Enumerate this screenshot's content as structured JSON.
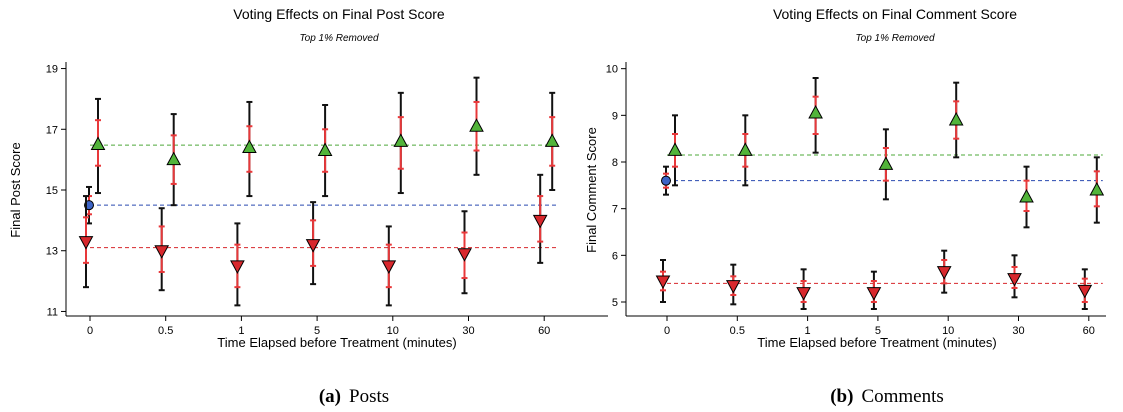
{
  "colors": {
    "control": "#3d64c6",
    "up": "#52b43a",
    "down": "#d8282d",
    "ci_inner": "#e8383a",
    "ci_outer": "#111111",
    "line_blue": "#2a4ab0",
    "line_green": "#4ea83a",
    "line_red": "#d8282d"
  },
  "captions": [
    {
      "tag": "(a)",
      "text": "Posts"
    },
    {
      "tag": "(b)",
      "text": "Comments"
    }
  ],
  "chart_data": [
    {
      "type": "scatter",
      "title": "Voting Effects on Final Post Score",
      "subtitle": "Top 1% Removed",
      "xlabel": "Time Elapsed before Treatment (minutes)",
      "ylabel": "Final Post Score",
      "categories": [
        "0",
        "0.5",
        "1",
        "5",
        "10",
        "30",
        "60"
      ],
      "yticks": [
        11,
        13,
        15,
        17,
        19
      ],
      "ylim": [
        10.85,
        19.15
      ],
      "control": {
        "value": 14.5,
        "ci_inner": [
          14.2,
          14.8
        ],
        "ci_outer": [
          13.9,
          15.1
        ]
      },
      "series": [
        {
          "kind": "up",
          "values": [
            16.5,
            16.0,
            16.4,
            16.3,
            16.6,
            17.1,
            16.6
          ],
          "ci_inner": [
            [
              15.8,
              17.3
            ],
            [
              15.2,
              16.8
            ],
            [
              15.6,
              17.1
            ],
            [
              15.6,
              17.0
            ],
            [
              15.7,
              17.4
            ],
            [
              16.3,
              17.9
            ],
            [
              15.8,
              17.4
            ]
          ],
          "ci_outer": [
            [
              14.9,
              18.0
            ],
            [
              14.5,
              17.5
            ],
            [
              14.8,
              17.9
            ],
            [
              14.8,
              17.8
            ],
            [
              14.9,
              18.2
            ],
            [
              15.5,
              18.7
            ],
            [
              15.0,
              18.2
            ]
          ],
          "mean": 16.48
        },
        {
          "kind": "down",
          "values": [
            13.3,
            13.0,
            12.5,
            13.2,
            12.5,
            12.9,
            14.0
          ],
          "ci_inner": [
            [
              12.6,
              14.1
            ],
            [
              12.3,
              13.8
            ],
            [
              11.8,
              13.2
            ],
            [
              12.5,
              14.0
            ],
            [
              11.8,
              13.2
            ],
            [
              12.1,
              13.6
            ],
            [
              13.3,
              14.8
            ]
          ],
          "ci_outer": [
            [
              11.8,
              14.8
            ],
            [
              11.7,
              14.4
            ],
            [
              11.2,
              13.9
            ],
            [
              11.9,
              14.6
            ],
            [
              11.2,
              13.8
            ],
            [
              11.6,
              14.3
            ],
            [
              12.6,
              15.5
            ]
          ],
          "mean": 13.1
        }
      ],
      "grid": false
    },
    {
      "type": "scatter",
      "title": "Voting Effects on Final Comment Score",
      "subtitle": "Top 1% Removed",
      "xlabel": "Time Elapsed before Treatment (minutes)",
      "ylabel": "Final Comment Score",
      "categories": [
        "0",
        "0.5",
        "1",
        "5",
        "10",
        "30",
        "60"
      ],
      "yticks": [
        5,
        6,
        7,
        8,
        9,
        10
      ],
      "ylim": [
        4.7,
        10.1
      ],
      "control": {
        "value": 7.6,
        "ci_inner": [
          7.45,
          7.75
        ],
        "ci_outer": [
          7.3,
          7.9
        ]
      },
      "series": [
        {
          "kind": "up",
          "values": [
            8.25,
            8.25,
            9.05,
            7.95,
            8.9,
            7.25,
            7.4
          ],
          "ci_inner": [
            [
              7.9,
              8.6
            ],
            [
              7.9,
              8.6
            ],
            [
              8.6,
              9.4
            ],
            [
              7.6,
              8.3
            ],
            [
              8.5,
              9.3
            ],
            [
              6.95,
              7.6
            ],
            [
              7.05,
              7.8
            ]
          ],
          "ci_outer": [
            [
              7.5,
              9.0
            ],
            [
              7.5,
              9.0
            ],
            [
              8.2,
              9.8
            ],
            [
              7.2,
              8.7
            ],
            [
              8.1,
              9.7
            ],
            [
              6.6,
              7.9
            ],
            [
              6.7,
              8.1
            ]
          ],
          "mean": 8.15
        },
        {
          "kind": "down",
          "values": [
            5.45,
            5.35,
            5.2,
            5.2,
            5.65,
            5.5,
            5.25
          ],
          "ci_inner": [
            [
              5.25,
              5.65
            ],
            [
              5.15,
              5.55
            ],
            [
              5.0,
              5.45
            ],
            [
              5.0,
              5.45
            ],
            [
              5.4,
              5.9
            ],
            [
              5.3,
              5.75
            ],
            [
              5.0,
              5.5
            ]
          ],
          "ci_outer": [
            [
              5.0,
              5.9
            ],
            [
              4.95,
              5.8
            ],
            [
              4.85,
              5.7
            ],
            [
              4.85,
              5.65
            ],
            [
              5.2,
              6.1
            ],
            [
              5.1,
              6.0
            ],
            [
              4.85,
              5.7
            ]
          ],
          "mean": 5.4
        }
      ],
      "grid": false
    }
  ]
}
